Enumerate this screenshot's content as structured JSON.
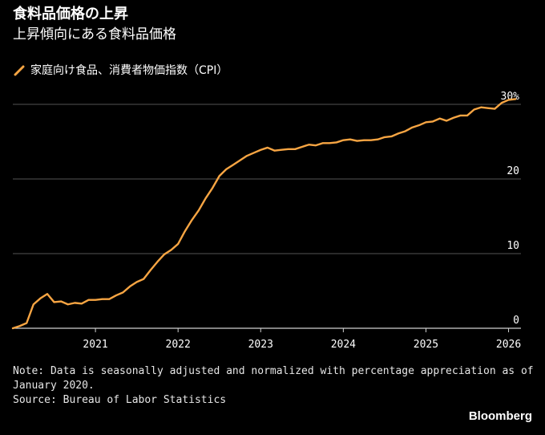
{
  "header": {
    "title": "食料品価格の上昇",
    "subtitle": "上昇傾向にある食料品価格"
  },
  "colors": {
    "series": "#f7a543",
    "grid": "#555555",
    "axis": "#cfcfcf",
    "background": "#000000"
  },
  "chart_data": {
    "type": "line",
    "title": "食料品価格の上昇",
    "subtitle": "上昇傾向にある食料品価格",
    "xlabel": "",
    "ylabel": "",
    "x_range": [
      2020.0,
      2026.15
    ],
    "ylim": [
      0,
      30
    ],
    "x_ticks": [
      {
        "value": 2021,
        "label": "2021"
      },
      {
        "value": 2022,
        "label": "2022"
      },
      {
        "value": 2023,
        "label": "2023"
      },
      {
        "value": 2024,
        "label": "2024"
      },
      {
        "value": 2025,
        "label": "2025"
      },
      {
        "value": 2026,
        "label": "2026"
      }
    ],
    "y_ticks": [
      {
        "value": 0,
        "label": "0"
      },
      {
        "value": 10,
        "label": "10"
      },
      {
        "value": 20,
        "label": "20"
      },
      {
        "value": 30,
        "label": "30%"
      }
    ],
    "legend": "top-left",
    "grid": true,
    "series": [
      {
        "name": "家庭向け食品、消費者物価指数（CPI）",
        "color": "#f7a543",
        "x": [
          2020.0,
          2020.083,
          2020.167,
          2020.25,
          2020.333,
          2020.417,
          2020.5,
          2020.583,
          2020.667,
          2020.75,
          2020.833,
          2020.917,
          2021.0,
          2021.083,
          2021.167,
          2021.25,
          2021.333,
          2021.417,
          2021.5,
          2021.583,
          2021.667,
          2021.75,
          2021.833,
          2021.917,
          2022.0,
          2022.083,
          2022.167,
          2022.25,
          2022.333,
          2022.417,
          2022.5,
          2022.583,
          2022.667,
          2022.75,
          2022.833,
          2022.917,
          2023.0,
          2023.083,
          2023.167,
          2023.25,
          2023.333,
          2023.417,
          2023.5,
          2023.583,
          2023.667,
          2023.75,
          2023.833,
          2023.917,
          2024.0,
          2024.083,
          2024.167,
          2024.25,
          2024.333,
          2024.417,
          2024.5,
          2024.583,
          2024.667,
          2024.75,
          2024.833,
          2024.917,
          2025.0,
          2025.083,
          2025.167,
          2025.25,
          2025.333,
          2025.417,
          2025.5,
          2025.583,
          2025.667,
          2025.75,
          2025.833,
          2025.917,
          2026.0,
          2026.083
        ],
        "values": [
          0.0,
          0.3,
          0.7,
          3.2,
          4.0,
          4.6,
          3.5,
          3.6,
          3.2,
          3.4,
          3.3,
          3.8,
          3.8,
          3.9,
          3.9,
          4.4,
          4.8,
          5.6,
          6.2,
          6.6,
          7.8,
          8.9,
          9.9,
          10.5,
          11.3,
          13.0,
          14.5,
          15.8,
          17.4,
          18.8,
          20.4,
          21.3,
          21.9,
          22.5,
          23.1,
          23.5,
          23.9,
          24.2,
          23.8,
          23.9,
          24.0,
          24.0,
          24.3,
          24.6,
          24.5,
          24.8,
          24.8,
          24.9,
          25.2,
          25.3,
          25.1,
          25.2,
          25.2,
          25.3,
          25.6,
          25.7,
          26.1,
          26.4,
          26.9,
          27.2,
          27.6,
          27.7,
          28.1,
          27.8,
          28.2,
          28.5,
          28.5,
          29.3,
          29.6,
          29.5,
          29.4,
          30.2,
          30.6,
          30.7
        ]
      }
    ]
  },
  "footer": {
    "note": "Note: Data is seasonally adjusted and normalized with percentage appreciation as of January 2020.",
    "source": "Source: Bureau of Labor Statistics",
    "brand": "Bloomberg"
  }
}
